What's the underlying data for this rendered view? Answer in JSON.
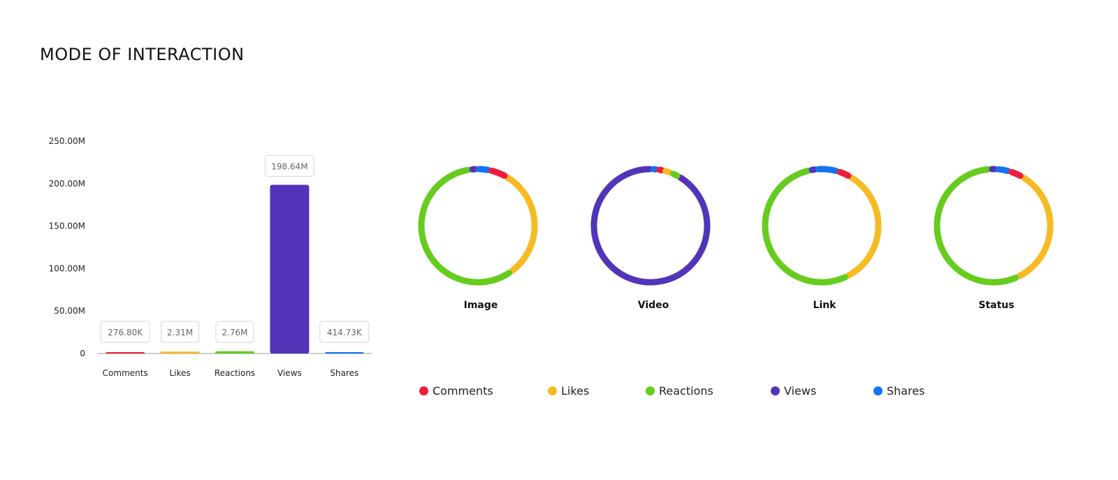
{
  "title": "MODE OF INTERACTION",
  "colors": {
    "Comments": "#ee1c3c",
    "Likes": "#f6bb22",
    "Reactions": "#66cc1e",
    "Views": "#5234b9",
    "Shares": "#1174f0",
    "axis": "#999999",
    "label_border": "#dddddd"
  },
  "chart_data": [
    {
      "type": "bar",
      "categories": [
        "Comments",
        "Likes",
        "Reactions",
        "Views",
        "Shares"
      ],
      "values": [
        0.2768,
        2.31,
        2.76,
        198.64,
        0.41473
      ],
      "value_labels": [
        "276.80K",
        "2.31M",
        "2.76M",
        "198.64M",
        "414.73K"
      ],
      "series_colors": [
        "Comments",
        "Likes",
        "Reactions",
        "Views",
        "Shares"
      ],
      "unit": "M",
      "ylim": [
        0,
        250
      ],
      "yticks": [
        0,
        50,
        100,
        150,
        200,
        250
      ],
      "ytick_labels": [
        "0",
        "50.00M",
        "100.00M",
        "150.00M",
        "200.00M",
        "250.00M"
      ],
      "grid": false
    },
    {
      "type": "pie",
      "style": "donut-ring",
      "charts": [
        {
          "name": "Image",
          "slices": [
            {
              "label": "Likes",
              "value": 26
            },
            {
              "label": "Reactions",
              "value": 47
            },
            {
              "label": "Views",
              "value": 1.5
            },
            {
              "label": "Shares",
              "value": 3
            },
            {
              "label": "Comments",
              "value": 4
            }
          ]
        },
        {
          "name": "Video",
          "slices": [
            {
              "label": "Views",
              "value": 80
            },
            {
              "label": "Shares",
              "value": 1.5
            },
            {
              "label": "Comments",
              "value": 1.5
            },
            {
              "label": "Likes",
              "value": 2
            },
            {
              "label": "Reactions",
              "value": 2
            }
          ]
        },
        {
          "name": "Link",
          "slices": [
            {
              "label": "Likes",
              "value": 28
            },
            {
              "label": "Reactions",
              "value": 44
            },
            {
              "label": "Views",
              "value": 1.5
            },
            {
              "label": "Shares",
              "value": 5
            },
            {
              "label": "Comments",
              "value": 3
            }
          ]
        },
        {
          "name": "Status",
          "slices": [
            {
              "label": "Likes",
              "value": 28
            },
            {
              "label": "Reactions",
              "value": 45
            },
            {
              "label": "Views",
              "value": 1.5
            },
            {
              "label": "Shares",
              "value": 3
            },
            {
              "label": "Comments",
              "value": 3
            }
          ]
        }
      ]
    }
  ],
  "legend": [
    "Comments",
    "Likes",
    "Reactions",
    "Views",
    "Shares"
  ],
  "legend_position": "bottom"
}
